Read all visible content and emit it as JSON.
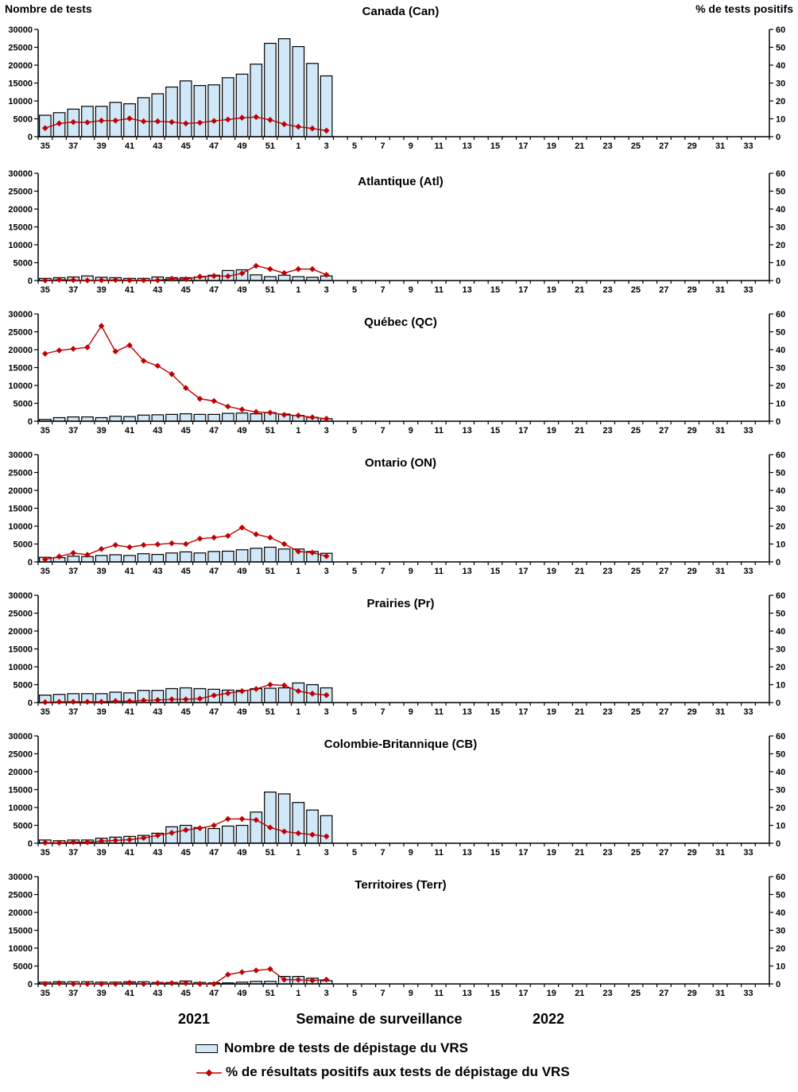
{
  "header": {
    "left_axis_title": "Nombre de tests",
    "right_axis_title": "% de tests positifs"
  },
  "footer": {
    "year_left": "2021",
    "x_axis_title": "Semaine de surveillance",
    "year_right": "2022"
  },
  "legend": {
    "tests_label": "Nombre de tests de dépistage du VRS",
    "pct_label": "% de résultats positifs aux tests de dépistage du VRS"
  },
  "chart_layout": {
    "weeks_total": 52,
    "left_axis": {
      "title": "Nombre de tests",
      "min": 0,
      "max": 30000,
      "step": 5000
    },
    "right_axis": {
      "title": "% de tests positifs",
      "min": 0,
      "max": 60,
      "step": 10
    },
    "x_tick_labels": [
      "35",
      "37",
      "39",
      "41",
      "43",
      "45",
      "47",
      "49",
      "51",
      "1",
      "3",
      "5",
      "7",
      "9",
      "11",
      "13",
      "15",
      "17",
      "19",
      "21",
      "23",
      "25",
      "27",
      "29",
      "31",
      "33"
    ],
    "colors": {
      "bar_fill": "#D0E8F8",
      "bar_stroke": "#000000",
      "line": "#C00000",
      "text": "#000000"
    },
    "legend_position": "bottom",
    "grid": false
  },
  "chart_data": [
    {
      "type": "bar+line",
      "title": "Canada (Can)",
      "x": [
        35,
        36,
        37,
        38,
        39,
        40,
        41,
        42,
        43,
        44,
        45,
        46,
        47,
        48,
        49,
        50,
        51,
        52,
        1,
        2,
        3
      ],
      "ylim_left": [
        0,
        30000
      ],
      "ylim_right": [
        0,
        60
      ],
      "series": [
        {
          "name": "Nombre de tests de dépistage du VRS",
          "type": "bar",
          "axis": "left",
          "values": [
            6000,
            6700,
            7700,
            8500,
            8500,
            9600,
            9200,
            10900,
            12000,
            13900,
            15600,
            14300,
            14500,
            16500,
            17500,
            20300,
            26100,
            27400,
            25200,
            20500,
            17000
          ]
        },
        {
          "name": "% de résultats positifs aux tests de dépistage du VRS",
          "type": "line",
          "axis": "right",
          "values": [
            4.8,
            7.4,
            8.2,
            8.0,
            9.0,
            9.0,
            10.2,
            8.6,
            8.6,
            8.2,
            7.4,
            7.8,
            8.8,
            9.6,
            10.6,
            11.0,
            9.4,
            7.0,
            5.6,
            4.6,
            3.4
          ]
        }
      ]
    },
    {
      "type": "bar+line",
      "title": "Atlantique (Atl)",
      "x": [
        35,
        36,
        37,
        38,
        39,
        40,
        41,
        42,
        43,
        44,
        45,
        46,
        47,
        48,
        49,
        50,
        51,
        52,
        1,
        2,
        3
      ],
      "ylim_left": [
        0,
        30000
      ],
      "ylim_right": [
        0,
        60
      ],
      "series": [
        {
          "name": "Nombre de tests de dépistage du VRS",
          "type": "bar",
          "axis": "left",
          "values": [
            600,
            800,
            1000,
            1300,
            900,
            800,
            600,
            600,
            1000,
            800,
            800,
            1000,
            1500,
            2800,
            3000,
            1600,
            1100,
            1500,
            1100,
            900,
            1300
          ]
        },
        {
          "name": "% de résultats positifs aux tests de dépistage du VRS",
          "type": "line",
          "axis": "right",
          "values": [
            0.1,
            0.5,
            0.3,
            0.1,
            0.2,
            0.3,
            0.2,
            0.2,
            0.2,
            1.0,
            0.8,
            2.2,
            2.6,
            2.4,
            4.0,
            8.2,
            6.4,
            4.2,
            6.4,
            6.4,
            3.2
          ]
        }
      ]
    },
    {
      "type": "bar+line",
      "title": "Québec (QC)",
      "x": [
        35,
        36,
        37,
        38,
        39,
        40,
        41,
        42,
        43,
        44,
        45,
        46,
        47,
        48,
        49,
        50,
        51,
        52,
        1,
        2,
        3
      ],
      "ylim_left": [
        0,
        30000
      ],
      "ylim_right": [
        0,
        60
      ],
      "series": [
        {
          "name": "Nombre de tests de dépistage du VRS",
          "type": "bar",
          "axis": "left",
          "values": [
            500,
            1000,
            1200,
            1200,
            1000,
            1400,
            1300,
            1700,
            1800,
            1900,
            2100,
            1900,
            1900,
            2200,
            2300,
            2100,
            2400,
            2000,
            1600,
            1100,
            700
          ]
        },
        {
          "name": "% de résultats positifs aux tests de dépistage du VRS",
          "type": "line",
          "axis": "right",
          "values": [
            37.8,
            39.6,
            40.5,
            41.3,
            53.3,
            39.0,
            42.5,
            33.8,
            31.0,
            26.3,
            18.6,
            12.6,
            11.3,
            8.2,
            6.6,
            5.2,
            4.8,
            3.6,
            3.2,
            2.2,
            1.4
          ]
        }
      ]
    },
    {
      "type": "bar+line",
      "title": "Ontario (ON)",
      "x": [
        35,
        36,
        37,
        38,
        39,
        40,
        41,
        42,
        43,
        44,
        45,
        46,
        47,
        48,
        49,
        50,
        51,
        52,
        1,
        2,
        3
      ],
      "ylim_left": [
        0,
        30000
      ],
      "ylim_right": [
        0,
        60
      ],
      "series": [
        {
          "name": "Nombre de tests de dépistage du VRS",
          "type": "bar",
          "axis": "left",
          "values": [
            1300,
            1200,
            1600,
            1500,
            1800,
            2000,
            1800,
            2300,
            2100,
            2500,
            2800,
            2500,
            2900,
            3000,
            3400,
            3800,
            4100,
            3600,
            3600,
            2900,
            2400
          ]
        },
        {
          "name": "% de résultats positifs aux tests de dépistage du VRS",
          "type": "line",
          "axis": "right",
          "values": [
            1.4,
            3.0,
            5.0,
            4.0,
            7.2,
            9.4,
            8.2,
            9.4,
            9.8,
            10.4,
            10.0,
            13.0,
            13.6,
            14.6,
            19.2,
            15.4,
            13.6,
            10.0,
            5.8,
            5.2,
            3.2
          ]
        }
      ]
    },
    {
      "type": "bar+line",
      "title": "Prairies (Pr)",
      "x": [
        35,
        36,
        37,
        38,
        39,
        40,
        41,
        42,
        43,
        44,
        45,
        46,
        47,
        48,
        49,
        50,
        51,
        52,
        1,
        2,
        3
      ],
      "ylim_left": [
        0,
        30000
      ],
      "ylim_right": [
        0,
        60
      ],
      "series": [
        {
          "name": "Nombre de tests de dépistage du VRS",
          "type": "bar",
          "axis": "left",
          "values": [
            2100,
            2300,
            2500,
            2500,
            2500,
            2900,
            2700,
            3400,
            3400,
            3900,
            4100,
            3900,
            3700,
            3500,
            3400,
            3900,
            4000,
            4100,
            5500,
            5000,
            4100
          ]
        },
        {
          "name": "% de résultats positifs aux tests de dépistage du VRS",
          "type": "line",
          "axis": "right",
          "values": [
            0.2,
            0.4,
            0.4,
            0.4,
            0.4,
            0.8,
            0.8,
            1.2,
            1.4,
            1.8,
            1.8,
            2.2,
            4.0,
            5.2,
            6.4,
            7.6,
            10.0,
            9.6,
            6.4,
            5.0,
            4.2
          ]
        }
      ]
    },
    {
      "type": "bar+line",
      "title": "Colombie-Britannique (CB)",
      "x": [
        35,
        36,
        37,
        38,
        39,
        40,
        41,
        42,
        43,
        44,
        45,
        46,
        47,
        48,
        49,
        50,
        51,
        52,
        1,
        2,
        3
      ],
      "ylim_left": [
        0,
        30000
      ],
      "ylim_right": [
        0,
        60
      ],
      "series": [
        {
          "name": "Nombre de tests de dépistage du VRS",
          "type": "bar",
          "axis": "left",
          "values": [
            900,
            700,
            900,
            900,
            1400,
            1700,
            1900,
            2200,
            2800,
            4600,
            5000,
            4400,
            4100,
            4800,
            5000,
            8700,
            14300,
            13800,
            11400,
            9300,
            7700
          ]
        },
        {
          "name": "% de résultats positifs aux tests de dépistage du VRS",
          "type": "line",
          "axis": "right",
          "values": [
            0.3,
            0.2,
            0.6,
            0.6,
            1.2,
            1.6,
            2.0,
            3.0,
            4.4,
            5.8,
            7.4,
            8.4,
            10.0,
            13.6,
            13.6,
            13.0,
            8.8,
            6.6,
            5.6,
            4.8,
            3.8
          ]
        }
      ]
    },
    {
      "type": "bar+line",
      "title": "Territoires (Terr)",
      "x": [
        35,
        36,
        37,
        38,
        39,
        40,
        41,
        42,
        43,
        44,
        45,
        46,
        47,
        48,
        49,
        50,
        51,
        52,
        1,
        2,
        3
      ],
      "ylim_left": [
        0,
        30000
      ],
      "ylim_right": [
        0,
        60
      ],
      "series": [
        {
          "name": "Nombre de tests de dépistage du VRS",
          "type": "bar",
          "axis": "left",
          "values": [
            500,
            600,
            600,
            600,
            500,
            500,
            600,
            600,
            400,
            400,
            800,
            400,
            300,
            300,
            500,
            700,
            700,
            2100,
            2100,
            1600,
            900
          ]
        },
        {
          "name": "% de résultats positifs aux tests de dépistage du VRS",
          "type": "line",
          "axis": "right",
          "values": [
            0.0,
            0.4,
            0.0,
            0.0,
            0.0,
            0.0,
            0.6,
            0.0,
            0.4,
            0.4,
            0.4,
            0.0,
            0.0,
            5.2,
            6.6,
            7.5,
            8.3,
            2.4,
            2.3,
            1.9,
            2.4
          ]
        }
      ]
    }
  ]
}
